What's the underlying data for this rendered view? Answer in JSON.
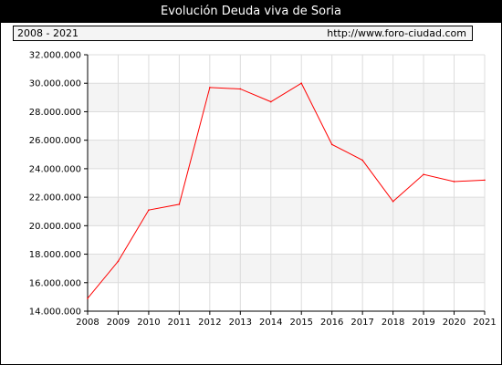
{
  "chart_data": {
    "type": "line",
    "title": "Evolución Deuda viva de Soria",
    "period": "2008 - 2021",
    "source": "http://www.foro-ciudad.com",
    "x": [
      "2008",
      "2009",
      "2010",
      "2011",
      "2012",
      "2013",
      "2014",
      "2015",
      "2016",
      "2017",
      "2018",
      "2019",
      "2020",
      "2021"
    ],
    "series": [
      {
        "values": [
          14900000,
          17500000,
          21100000,
          21500000,
          29700000,
          29600000,
          28700000,
          30000000,
          25700000,
          24600000,
          21700000,
          23600000,
          23100000,
          23200000
        ]
      }
    ],
    "ylim": [
      14000000,
      32000000
    ],
    "yticks": [
      14000000,
      16000000,
      18000000,
      20000000,
      22000000,
      24000000,
      26000000,
      28000000,
      30000000,
      32000000
    ],
    "ytick_labels": [
      "14.000.000",
      "16.000.000",
      "18.000.000",
      "20.000.000",
      "22.000.000",
      "24.000.000",
      "26.000.000",
      "28.000.000",
      "30.000.000",
      "32.000.000"
    ],
    "line_color": "#ff0000",
    "grid": true
  }
}
